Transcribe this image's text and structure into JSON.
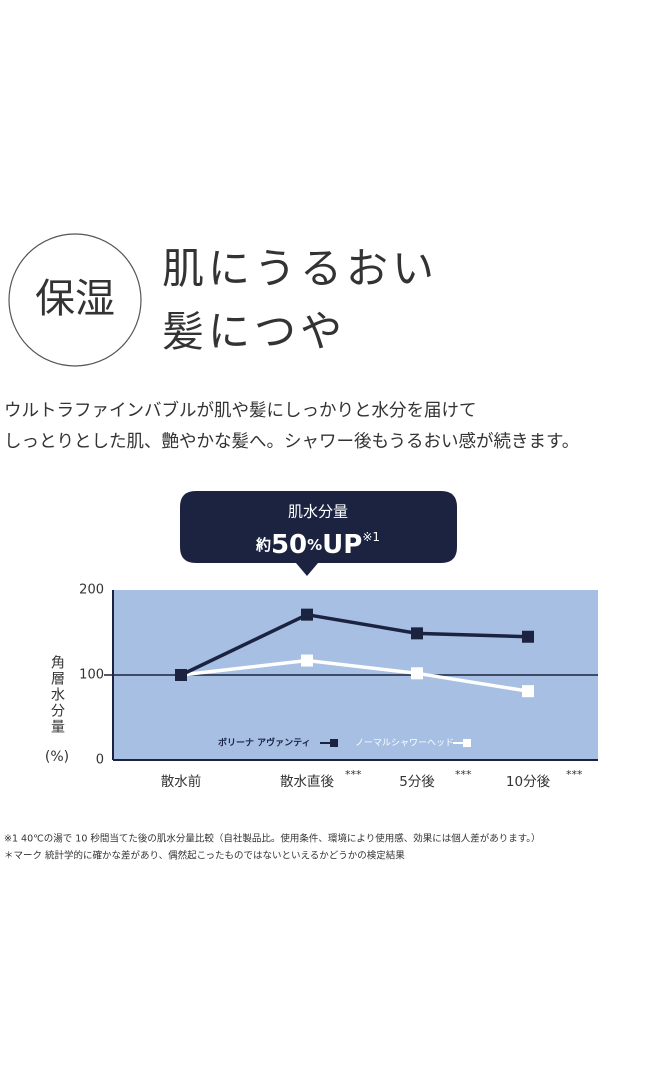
{
  "badge": "保湿",
  "headline": [
    "肌にうるおい",
    "髪につや"
  ],
  "description": [
    "ウルトラファインバブルが肌や髪にしっかりと水分を届けて",
    "しっとりとした肌、艶やかな髪へ。シャワー後もうるおい感が続きます。"
  ],
  "callout": {
    "label": "肌水分量",
    "prefix": "約",
    "value": "50",
    "unit": "%",
    "suffix": "UP",
    "note": "※1"
  },
  "chart_data": {
    "type": "line",
    "ylabel": "角層水分量",
    "yunit": "(%)",
    "categories": [
      "散水前",
      "散水直後",
      "5分後",
      "10分後"
    ],
    "category_notes": [
      null,
      "***",
      "***",
      "***"
    ],
    "series": [
      {
        "name": "ボリーナ アヴァンティ",
        "color": "#1b2340",
        "values": [
          100,
          171,
          149,
          145
        ]
      },
      {
        "name": "ノーマルシャワーヘッド",
        "color": "#ffffff",
        "values": [
          100,
          117,
          102,
          81
        ]
      }
    ],
    "ylim": [
      0,
      200
    ],
    "yticks": [
      0,
      100,
      200
    ],
    "plot_background": "#a6bfe3"
  },
  "footnotes": [
    "※1 40℃の湯で 10 秒間当てた後の肌水分量比較（自社製品比。使用条件、環境により使用感、効果には個人差があります。）",
    "＊マーク 統計学的に確かな差があり、偶然起こったものではないといえるかどうかの検定結果"
  ]
}
